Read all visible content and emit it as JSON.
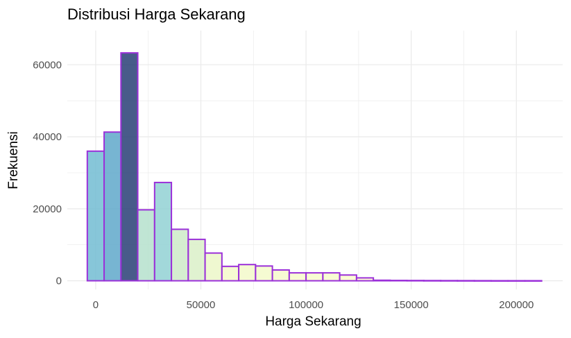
{
  "chart_data": {
    "type": "bar",
    "title": "Distribusi Harga Sekarang",
    "xlabel": "Harga Sekarang",
    "ylabel": "Frekuensi",
    "bin_width": 8000,
    "bins": [
      {
        "start": -4000,
        "end": 4000,
        "count": 36000
      },
      {
        "start": 4000,
        "end": 12000,
        "count": 41300
      },
      {
        "start": 12000,
        "end": 20000,
        "count": 63300
      },
      {
        "start": 20000,
        "end": 28000,
        "count": 19700
      },
      {
        "start": 28000,
        "end": 36000,
        "count": 27300
      },
      {
        "start": 36000,
        "end": 44000,
        "count": 14300
      },
      {
        "start": 44000,
        "end": 52000,
        "count": 11500
      },
      {
        "start": 52000,
        "end": 60000,
        "count": 7700
      },
      {
        "start": 60000,
        "end": 68000,
        "count": 4000
      },
      {
        "start": 68000,
        "end": 76000,
        "count": 4500
      },
      {
        "start": 76000,
        "end": 84000,
        "count": 4100
      },
      {
        "start": 84000,
        "end": 92000,
        "count": 3000
      },
      {
        "start": 92000,
        "end": 100000,
        "count": 2200
      },
      {
        "start": 100000,
        "end": 108000,
        "count": 2200
      },
      {
        "start": 108000,
        "end": 116000,
        "count": 2200
      },
      {
        "start": 116000,
        "end": 124000,
        "count": 1600
      },
      {
        "start": 124000,
        "end": 132000,
        "count": 800
      },
      {
        "start": 132000,
        "end": 140000,
        "count": 150
      },
      {
        "start": 140000,
        "end": 148000,
        "count": 100
      },
      {
        "start": 148000,
        "end": 156000,
        "count": 80
      },
      {
        "start": 156000,
        "end": 164000,
        "count": 60
      },
      {
        "start": 164000,
        "end": 172000,
        "count": 50
      },
      {
        "start": 172000,
        "end": 180000,
        "count": 40
      },
      {
        "start": 180000,
        "end": 188000,
        "count": 30
      },
      {
        "start": 188000,
        "end": 196000,
        "count": 20
      },
      {
        "start": 196000,
        "end": 204000,
        "count": 20
      },
      {
        "start": 204000,
        "end": 212000,
        "count": 20
      }
    ],
    "xlim": [
      -13500,
      222000
    ],
    "ylim": [
      -2400,
      69500
    ],
    "x_ticks": [
      0,
      50000,
      100000,
      150000,
      200000
    ],
    "x_tick_labels": [
      "0",
      "50000",
      "100000",
      "150000",
      "200000"
    ],
    "y_ticks": [
      0,
      20000,
      40000,
      60000
    ],
    "y_tick_labels": [
      "0",
      "20000",
      "40000",
      "60000"
    ],
    "grid": true,
    "fill_scale": "viridis-like gradient by count (low = pale yellow, high = dark navy)",
    "bar_outline_color": "#9b30d9",
    "grid_color": "#ebebeb"
  }
}
